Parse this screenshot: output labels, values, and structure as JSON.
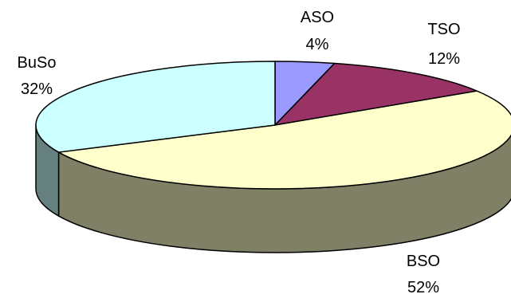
{
  "chart_data": {
    "type": "pie",
    "title": "",
    "slices": [
      {
        "label": "ASO",
        "value": 4,
        "percent_label": "4%",
        "color": "#9999ff"
      },
      {
        "label": "TSO",
        "value": 12,
        "percent_label": "12%",
        "color": "#993366"
      },
      {
        "label": "BSO",
        "value": 52,
        "percent_label": "52%",
        "color": "#ffffcc"
      },
      {
        "label": "BuSo",
        "value": 32,
        "percent_label": "32%",
        "color": "#ccffff"
      }
    ],
    "style": "3d-tilted",
    "legend": "none"
  }
}
